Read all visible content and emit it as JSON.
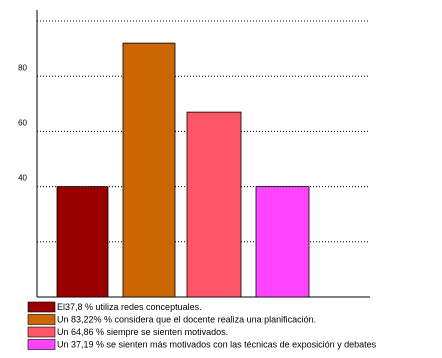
{
  "chart_data": {
    "type": "bar",
    "series": [
      {
        "name": "El37,8 % utiliza redes conceptuales.",
        "color": "#990000",
        "values": [
          40
        ]
      },
      {
        "name": "Un 83,22% % considera que el docente realiza una planificación.",
        "color": "#cc6600",
        "values": [
          92
        ]
      },
      {
        "name": "Un 64,86 % siempre se sienten motivados.",
        "color": "#ff5566",
        "values": [
          67
        ]
      },
      {
        "name": "Un 37,19 % se sienten más motivados con las técnicas de exposición y debates",
        "color": "#ff44ff",
        "values": [
          40
        ]
      }
    ],
    "ylim": [
      0,
      104
    ],
    "yticks": [
      40,
      60,
      80
    ],
    "ygrid": [
      20,
      40,
      60,
      80,
      100
    ],
    "grid": true
  }
}
